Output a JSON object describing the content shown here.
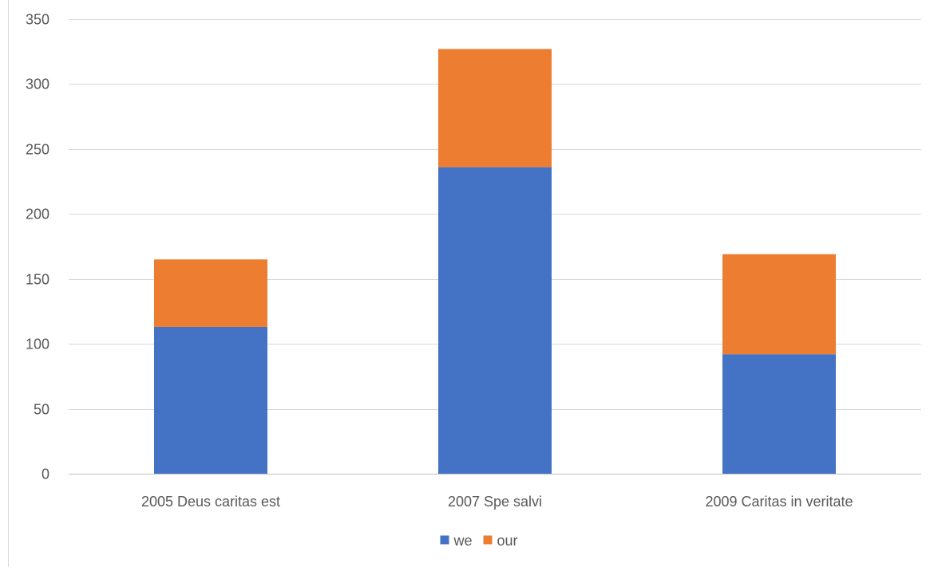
{
  "chart_data": {
    "type": "bar",
    "stacked": true,
    "title": "",
    "xlabel": "",
    "ylabel": "",
    "categories": [
      "2005 Deus caritas est",
      "2007 Spe salvi",
      "2009 Caritas in veritate"
    ],
    "series": [
      {
        "name": "we",
        "values": [
          113,
          236,
          92
        ],
        "color": "#4472C4"
      },
      {
        "name": "our",
        "values": [
          52,
          91,
          77
        ],
        "color": "#ED7D31"
      }
    ],
    "ylim": [
      0,
      350
    ],
    "yticks": [
      0,
      50,
      100,
      150,
      200,
      250,
      300,
      350
    ],
    "grid": true,
    "legend": "bottom-center"
  }
}
